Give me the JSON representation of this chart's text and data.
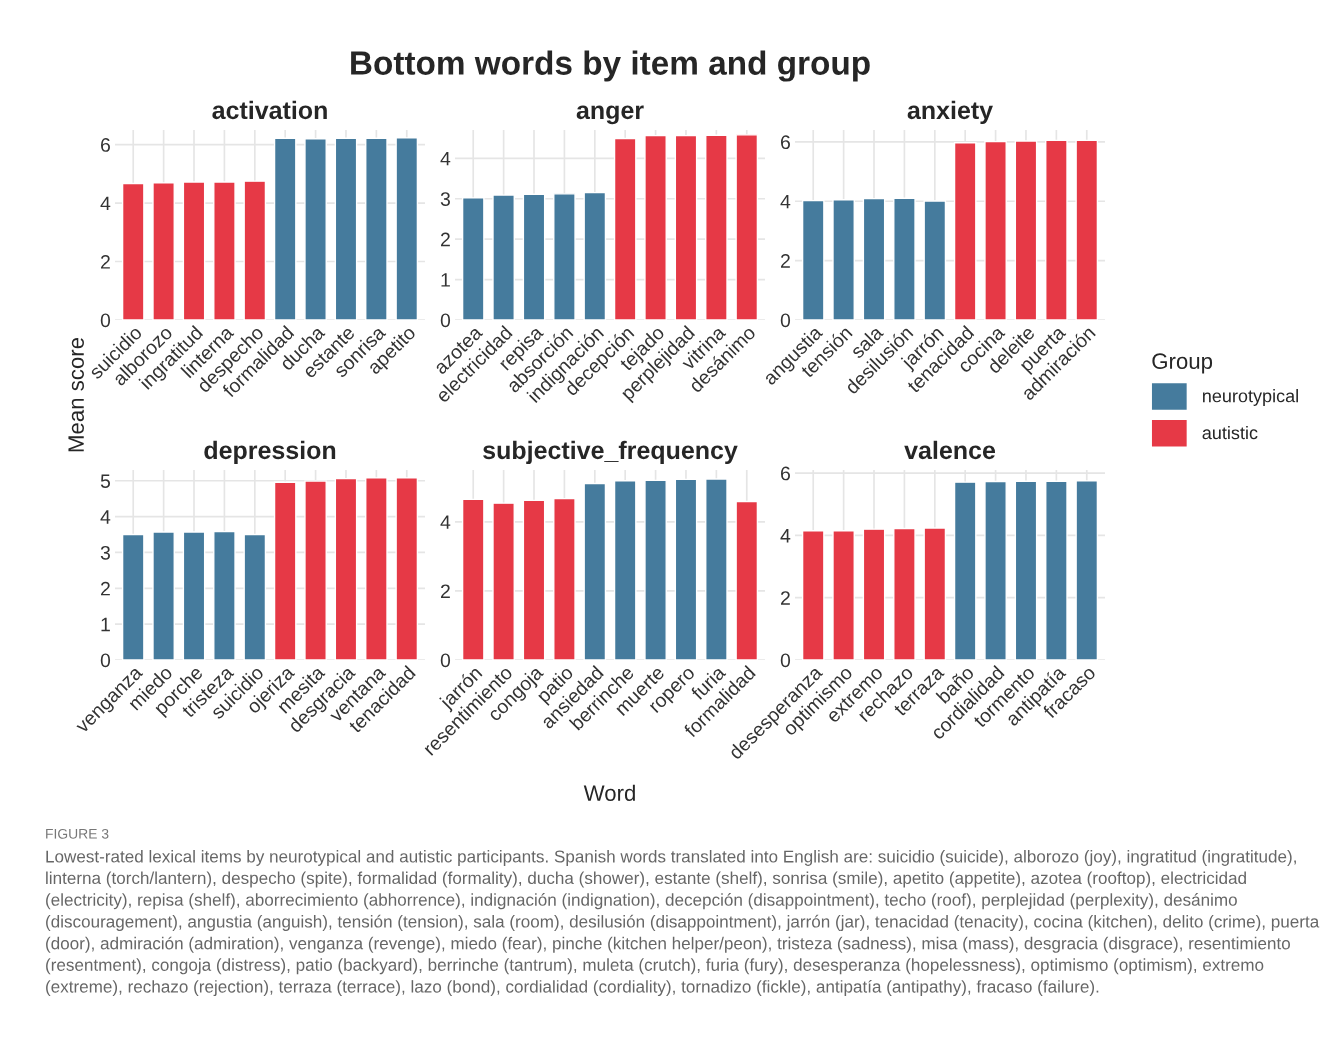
{
  "chart_data": [
    {
      "type": "other",
      "title": "Bottom words by item and group",
      "xlabel": "Word",
      "ylabel": "Mean score",
      "annotations": [
        "FIGURE 3",
        "Lowest-rated lexical items by neurotypical and autistic participants. Spanish words translated into English are: suicidio (suicide), alborozo (joy), ingratitud (ingratitude), linterna (torch/lantern), despecho (spite), formalidad (formality), ducha (shower), estante (shelf), sonrisa (smile), apetito (appetite), azotea (rooftop), electricidad (electricity), repisa (shelf), aborrecimiento (abhorrence), indignación (indignation), decepción (disappointment), techo (roof), perplejidad (perplexity), desánimo (discouragement), angustia (anguish), tensión (tension), sala (room), desilusión (disappointment), jarrón (jar), tenacidad (tenacity), cocina (kitchen), delito (crime), puerta (door), admiración (admiration), venganza (revenge), miedo (fear), pinche (kitchen helper/peon), tristeza (sadness), misa (mass), desgracia (disgrace), resentimiento (resentment), congoja (distress), patio (backyard), berrinche (tantrum), muleta (crutch), furia (fury), desesperanza (hopelessness), optimismo (optimism), extremo (extreme), rechazo (rejection), terraza (terrace), lazo (bond), cordialidad (cordiality), tornadizo (fickle), antipatía (antipathy), fracaso (failure)."
      ]
    },
    {
      "type": "bar",
      "title": "activation",
      "categories": [
        "suicidio",
        "alborozo",
        "ingratitud",
        "linterna",
        "despecho",
        "formalidad",
        "ducha",
        "estante",
        "sonrisa",
        "apetito"
      ],
      "ylim": [
        0,
        6.5
      ],
      "yticks": [
        0,
        2,
        4,
        6
      ],
      "grid": true,
      "legend": "right",
      "legend_title": "Group",
      "series": [
        {
          "name": "neurotypical",
          "color": "#457b9d",
          "values": [
            null,
            null,
            null,
            null,
            null,
            6.22,
            6.2,
            6.22,
            6.22,
            6.23
          ]
        },
        {
          "name": "autistic",
          "color": "#e63946",
          "values": [
            4.67,
            4.69,
            4.72,
            4.72,
            4.75,
            null,
            null,
            null,
            null,
            null
          ]
        }
      ]
    },
    {
      "type": "bar",
      "title": "anger",
      "categories": [
        "azotea",
        "electricidad",
        "repisa",
        "absorción",
        "indignación",
        "decepción",
        "tejado",
        "perplejidad",
        "vitrina",
        "desánimo"
      ],
      "ylim": [
        0,
        4.7
      ],
      "yticks": [
        0,
        1,
        2,
        3,
        4
      ],
      "grid": true,
      "series": [
        {
          "color": "#457b9d",
          "values": [
            3.02,
            3.09,
            3.11,
            3.12,
            3.15,
            null,
            null,
            null,
            null,
            null
          ]
        },
        {
          "color": "#e63946",
          "values": [
            null,
            null,
            null,
            null,
            null,
            4.49,
            4.56,
            4.56,
            4.57,
            4.58
          ]
        }
      ]
    },
    {
      "type": "bar",
      "title": "anxiety",
      "categories": [
        "angustia",
        "tensión",
        "sala",
        "desilusión",
        "jarrón",
        "tenacidad",
        "cocina",
        "deleite",
        "puerta",
        "admiración"
      ],
      "ylim": [
        0,
        6.4
      ],
      "yticks": [
        0,
        2,
        4,
        6
      ],
      "grid": true,
      "series": [
        {
          "color": "#457b9d",
          "values": [
            4.02,
            4.05,
            4.09,
            4.1,
            4.01,
            null,
            null,
            null,
            null,
            null
          ]
        },
        {
          "color": "#e63946",
          "values": [
            null,
            null,
            null,
            null,
            null,
            5.97,
            6.01,
            6.03,
            6.05,
            6.05
          ]
        }
      ]
    },
    {
      "type": "bar",
      "title": "depression",
      "categories": [
        "venganza",
        "miedo",
        "porche",
        "tristeza",
        "suicidio",
        "ojeriza",
        "mesita",
        "desgracia",
        "ventana",
        "tenacidad"
      ],
      "ylim": [
        0,
        5.3
      ],
      "yticks": [
        0,
        1,
        2,
        3,
        4,
        5
      ],
      "grid": true,
      "series": [
        {
          "color": "#457b9d",
          "values": [
            3.5,
            3.57,
            3.57,
            3.58,
            3.5,
            null,
            null,
            null,
            null,
            null
          ]
        },
        {
          "color": "#e63946",
          "values": [
            null,
            null,
            null,
            null,
            null,
            4.96,
            4.99,
            5.06,
            5.08,
            5.08
          ]
        }
      ]
    },
    {
      "type": "bar",
      "title": "subjective_frequency",
      "categories": [
        "jarrón",
        "resentimiento",
        "congoja",
        "patio",
        "ansiedad",
        "berrinche",
        "muerte",
        "ropero",
        "furia",
        "formalidad"
      ],
      "ylim": [
        0,
        5.5
      ],
      "yticks": [
        0,
        2,
        4
      ],
      "grid": true,
      "series": [
        {
          "color": "#457b9d",
          "values": [
            null,
            null,
            null,
            null,
            5.11,
            5.19,
            5.2,
            5.23,
            5.24,
            null
          ]
        },
        {
          "color": "#e63946",
          "values": [
            4.65,
            4.54,
            4.62,
            4.67,
            null,
            null,
            null,
            null,
            null,
            4.59
          ]
        }
      ]
    },
    {
      "type": "bar",
      "title": "valence",
      "categories": [
        "desesperanza",
        "optimismo",
        "extremo",
        "rechazo",
        "terraza",
        "baño",
        "cordialidad",
        "tormento",
        "antipatía",
        "fracaso"
      ],
      "ylim": [
        0,
        6.1
      ],
      "yticks": [
        0,
        2,
        4,
        6
      ],
      "grid": true,
      "series": [
        {
          "color": "#457b9d",
          "values": [
            null,
            null,
            null,
            null,
            null,
            5.71,
            5.73,
            5.74,
            5.74,
            5.75
          ]
        },
        {
          "color": "#e63946",
          "values": [
            4.15,
            4.15,
            4.2,
            4.22,
            4.24,
            null,
            null,
            null,
            null,
            null
          ]
        }
      ]
    }
  ]
}
